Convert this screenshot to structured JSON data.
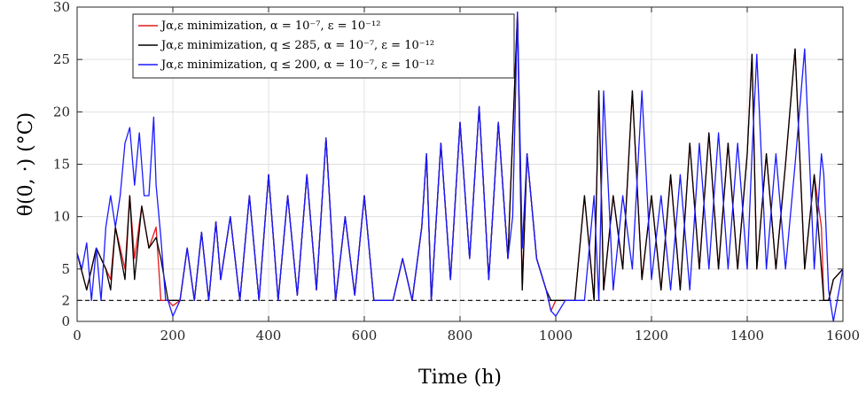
{
  "chart_data": {
    "type": "line",
    "xlabel": "Time (h)",
    "ylabel": "θ(0, ·) (°C)",
    "xlim": [
      0,
      1600
    ],
    "ylim": [
      0,
      30
    ],
    "xticks": [
      0,
      200,
      400,
      600,
      800,
      1000,
      1200,
      1400,
      1600
    ],
    "yticks": [
      0,
      2,
      5,
      10,
      15,
      20,
      25,
      30
    ],
    "grid": true,
    "legend_position": "top-left",
    "reference_line": {
      "y": 2,
      "style": "dashed",
      "color": "#000000"
    },
    "series": [
      {
        "name": "Jα,ε minimization, α = 10⁻⁷, ε = 10⁻¹²",
        "color": "#e41a1c",
        "x": [
          0,
          20,
          40,
          60,
          70,
          80,
          100,
          110,
          120,
          135,
          150,
          165,
          175,
          190,
          200,
          215,
          230,
          245,
          260,
          275,
          290,
          300,
          320,
          340,
          360,
          380,
          400,
          420,
          440,
          460,
          480,
          500,
          520,
          540,
          560,
          580,
          600,
          620,
          640,
          660,
          680,
          700,
          720,
          730,
          740,
          760,
          780,
          800,
          820,
          840,
          860,
          880,
          900,
          920,
          930,
          940,
          960,
          980,
          990,
          1000,
          1020,
          1040,
          1060,
          1080,
          1090,
          1100,
          1120,
          1140,
          1160,
          1180,
          1200,
          1220,
          1240,
          1260,
          1280,
          1300,
          1320,
          1340,
          1360,
          1380,
          1400,
          1410,
          1420,
          1440,
          1460,
          1480,
          1500,
          1520,
          1540,
          1555,
          1560,
          1570,
          1580,
          1600
        ],
        "y": [
          6.5,
          3,
          7,
          5,
          4,
          9,
          5,
          12,
          6,
          11,
          7,
          9,
          2,
          2,
          1.5,
          2,
          7,
          2,
          8.5,
          2,
          9.5,
          4,
          10,
          2,
          12,
          2,
          14,
          2,
          12,
          2.5,
          14,
          3,
          17.5,
          2,
          10,
          2.5,
          12,
          2,
          2,
          2,
          6,
          2,
          9,
          16,
          2,
          17,
          4,
          19,
          6,
          20.5,
          4,
          19,
          6,
          29.5,
          3,
          16,
          6,
          3,
          1,
          2,
          2,
          2,
          12,
          2,
          22,
          3,
          12,
          5,
          22,
          4,
          12,
          3,
          14,
          3,
          17,
          5,
          18,
          5,
          17,
          5,
          16,
          25.5,
          5,
          16,
          5,
          15,
          26,
          5,
          14,
          9,
          2,
          2,
          4,
          5
        ]
      },
      {
        "name": "Jα,ε minimization, q ≤ 285, α = 10⁻⁷, ε = 10⁻¹²",
        "color": "#000000",
        "x": [
          0,
          20,
          40,
          60,
          70,
          80,
          100,
          110,
          120,
          135,
          150,
          165,
          175,
          190,
          200,
          215,
          230,
          245,
          260,
          275,
          290,
          300,
          320,
          340,
          360,
          380,
          400,
          420,
          440,
          460,
          480,
          500,
          520,
          540,
          560,
          580,
          600,
          620,
          640,
          660,
          680,
          700,
          720,
          730,
          740,
          760,
          780,
          800,
          820,
          840,
          860,
          880,
          900,
          920,
          930,
          940,
          960,
          980,
          990,
          1000,
          1020,
          1040,
          1060,
          1080,
          1090,
          1100,
          1120,
          1140,
          1160,
          1180,
          1200,
          1220,
          1240,
          1260,
          1280,
          1300,
          1320,
          1340,
          1360,
          1380,
          1400,
          1410,
          1420,
          1440,
          1460,
          1480,
          1500,
          1520,
          1540,
          1555,
          1560,
          1570,
          1580,
          1600
        ],
        "y": [
          6.5,
          3,
          7,
          5,
          3,
          9,
          4,
          12,
          4,
          11,
          7,
          8,
          6,
          2,
          2,
          2,
          7,
          2,
          8.5,
          2,
          9.5,
          4,
          10,
          2,
          12,
          2,
          14,
          2,
          12,
          2.5,
          14,
          3,
          17.5,
          2,
          10,
          2.5,
          12,
          2,
          2,
          2,
          6,
          2,
          9,
          16,
          2,
          17,
          4,
          19,
          6,
          20.5,
          4,
          19,
          6,
          29.5,
          3,
          16,
          6,
          3,
          2,
          2,
          2,
          2,
          12,
          2,
          22,
          3,
          12,
          5,
          22,
          4,
          12,
          3,
          14,
          3,
          17,
          5,
          18,
          5,
          17,
          5,
          16,
          25.5,
          5,
          16,
          5,
          15,
          26,
          5,
          14,
          5,
          2,
          2,
          4,
          5
        ]
      },
      {
        "name": "Jα,ε minimization, q ≤ 200, α = 10⁻⁷, ε = 10⁻¹²",
        "color": "#1a1aff",
        "x": [
          0,
          10,
          20,
          30,
          40,
          50,
          60,
          70,
          80,
          90,
          100,
          110,
          120,
          130,
          140,
          150,
          160,
          165,
          175,
          185,
          190,
          200,
          215,
          230,
          245,
          260,
          275,
          290,
          300,
          320,
          340,
          360,
          380,
          400,
          420,
          440,
          460,
          480,
          500,
          520,
          540,
          560,
          580,
          600,
          620,
          640,
          660,
          680,
          700,
          720,
          730,
          740,
          760,
          780,
          800,
          820,
          840,
          860,
          880,
          900,
          910,
          920,
          930,
          940,
          960,
          980,
          990,
          1000,
          1020,
          1040,
          1060,
          1080,
          1090,
          1100,
          1120,
          1140,
          1160,
          1180,
          1200,
          1220,
          1240,
          1260,
          1280,
          1300,
          1320,
          1340,
          1360,
          1380,
          1400,
          1410,
          1420,
          1440,
          1460,
          1480,
          1500,
          1520,
          1540,
          1555,
          1560,
          1570,
          1580,
          1600
        ],
        "y": [
          6.5,
          5,
          7.5,
          2,
          7,
          2,
          9,
          12,
          9,
          12,
          17,
          18.5,
          13,
          18,
          12,
          12,
          19.5,
          13,
          8,
          2,
          2,
          0.5,
          2,
          7,
          2,
          8.5,
          2,
          9.5,
          4,
          10,
          2,
          12,
          2,
          14,
          2,
          12,
          2.5,
          14,
          3,
          17.5,
          2,
          10,
          2.5,
          12,
          2,
          2,
          2,
          6,
          2,
          9,
          16,
          2,
          17,
          4,
          19,
          6,
          20.5,
          4,
          19,
          6,
          10,
          29.5,
          7,
          16,
          6,
          3,
          1,
          0.5,
          2,
          2,
          2,
          12,
          2,
          22,
          3,
          12,
          5,
          22,
          4,
          12,
          3,
          14,
          3,
          17,
          5,
          18,
          5,
          17,
          5,
          16,
          25.5,
          5,
          16,
          5,
          15,
          26,
          5,
          16,
          14,
          3,
          0,
          5
        ]
      }
    ]
  }
}
